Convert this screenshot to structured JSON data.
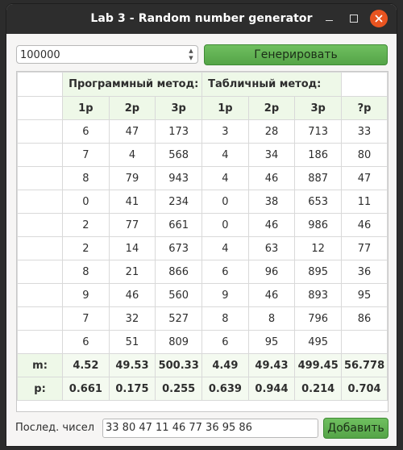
{
  "window": {
    "title": "Lab 3 - Random number generator"
  },
  "controls": {
    "count_value": "100000",
    "generate_label": "Генерировать"
  },
  "table": {
    "program_method_label": "Программный метод:",
    "table_method_label": "Табличный метод:",
    "column_headers": [
      "1p",
      "2p",
      "3p",
      "1p",
      "2p",
      "3p",
      "?p"
    ],
    "rows": [
      [
        "6",
        "47",
        "173",
        "3",
        "28",
        "713",
        "33"
      ],
      [
        "7",
        "4",
        "568",
        "4",
        "34",
        "186",
        "80"
      ],
      [
        "8",
        "79",
        "943",
        "4",
        "46",
        "887",
        "47"
      ],
      [
        "0",
        "41",
        "234",
        "0",
        "38",
        "653",
        "11"
      ],
      [
        "2",
        "77",
        "661",
        "0",
        "46",
        "986",
        "46"
      ],
      [
        "2",
        "14",
        "673",
        "4",
        "63",
        "12",
        "77"
      ],
      [
        "8",
        "21",
        "866",
        "6",
        "96",
        "895",
        "36"
      ],
      [
        "9",
        "46",
        "560",
        "9",
        "46",
        "893",
        "95"
      ],
      [
        "7",
        "32",
        "527",
        "8",
        "8",
        "796",
        "86"
      ],
      [
        "6",
        "51",
        "809",
        "6",
        "95",
        "495",
        ""
      ]
    ],
    "m_label": "m:",
    "m_values": [
      "4.52",
      "49.53",
      "500.33",
      "4.49",
      "49.43",
      "499.45",
      "56.778"
    ],
    "p_label": "p:",
    "p_values": [
      "0.661",
      "0.175",
      "0.255",
      "0.639",
      "0.944",
      "0.214",
      "0.704"
    ]
  },
  "sequence": {
    "label": "Послед. чисел",
    "value": "33 80 47 11 46 77 36 95 86",
    "add_label": "Добавить"
  },
  "colors": {
    "accent_green": "#5db250",
    "close_button": "#e95420",
    "titlebar": "#2d2d2d"
  }
}
